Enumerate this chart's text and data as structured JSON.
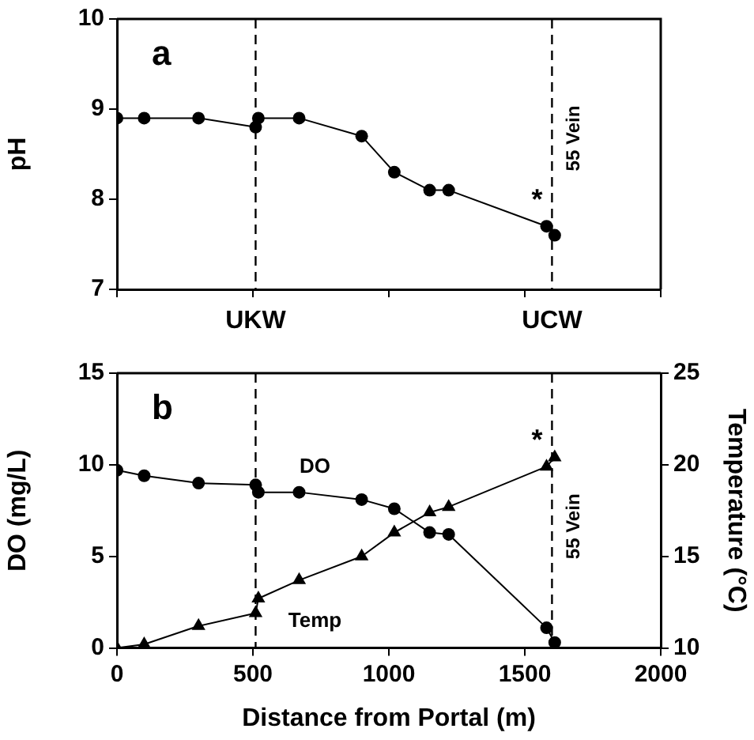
{
  "chart_data": [
    {
      "type": "line",
      "ylabel": "pH",
      "marker": "circle",
      "line_style": "solid",
      "grid": false,
      "legend": false,
      "tick_labels": "y",
      "x": [
        0,
        100,
        300,
        510,
        520,
        670,
        900,
        1020,
        1150,
        1220,
        1580,
        1610
      ],
      "series": [
        {
          "color": "#000000",
          "values": [
            8.9,
            8.9,
            8.9,
            8.8,
            8.9,
            8.9,
            8.7,
            8.3,
            8.1,
            8.1,
            7.7,
            7.6
          ]
        }
      ],
      "xlim": [
        0,
        2000
      ],
      "xticks": [
        0,
        500,
        1000,
        1500,
        2000
      ],
      "ylim": [
        7,
        10
      ],
      "yticks": [
        7,
        8,
        9,
        10
      ],
      "ref_lines": [
        {
          "axis": "x",
          "value": 510,
          "label": "UKW",
          "line_style": "dashed",
          "color": "#000000"
        },
        {
          "axis": "x",
          "value": 1600,
          "label": "UCW",
          "line_style": "dashed",
          "color": "#000000"
        }
      ],
      "annotations": [
        "a",
        "*",
        "55 Vein"
      ]
    },
    {
      "type": "line",
      "xlabel": "Distance from Portal (m)",
      "ylabel": "DO (mg/L)",
      "y2label": "Temperature (°C)",
      "line_style": "solid",
      "grid": false,
      "legend": false,
      "x": [
        0,
        100,
        300,
        510,
        520,
        670,
        900,
        1020,
        1150,
        1220,
        1580,
        1610
      ],
      "series": [
        {
          "name": "DO",
          "color": "#000000",
          "marker": "circle",
          "values": [
            9.7,
            9.4,
            9.0,
            8.9,
            8.5,
            8.5,
            8.1,
            7.6,
            6.3,
            6.2,
            1.1,
            0.3
          ]
        },
        {
          "name": "Temp",
          "color": "#000000",
          "marker": "triangle",
          "axis": "y2",
          "values": [
            10.0,
            10.2,
            11.2,
            11.9,
            12.7,
            13.7,
            15.0,
            16.3,
            17.4,
            17.7,
            19.9,
            20.4
          ]
        }
      ],
      "xlim": [
        0,
        2000
      ],
      "xticks": [
        0,
        500,
        1000,
        1500,
        2000
      ],
      "ylim": [
        0,
        15
      ],
      "yticks": [
        0,
        5,
        10,
        15
      ],
      "y2lim": [
        10,
        25
      ],
      "y2ticks": [
        10,
        15,
        20,
        25
      ],
      "ref_lines": [
        {
          "axis": "x",
          "value": 510,
          "label": null,
          "line_style": "dashed",
          "color": "#000000"
        },
        {
          "axis": "x",
          "value": 1600,
          "label": "55 Vein",
          "line_style": "dashed",
          "color": "#000000"
        }
      ],
      "annotations": [
        "b",
        "*"
      ]
    }
  ]
}
